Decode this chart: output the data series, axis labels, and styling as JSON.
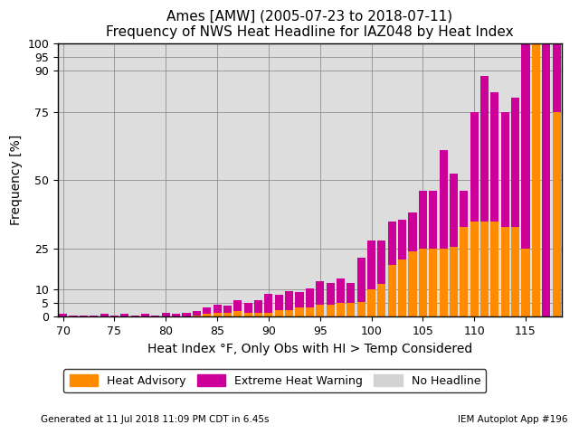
{
  "title1": "Ames [AMW] (2005-07-23 to 2018-07-11)",
  "title2": "Frequency of NWS Heat Headline for IAZ048 by Heat Index",
  "xlabel": "Heat Index °F, Only Obs with HI > Temp Considered",
  "ylabel": "Frequency [%]",
  "footer_left": "Generated at 11 Jul 2018 11:09 PM CDT in 6.45s",
  "footer_right": "IEM Autoplot App #196",
  "bg_color": "#dddddd",
  "color_advisory": "#FF8C00",
  "color_warning": "#CC0099",
  "color_no_headline": "#d3d3d3",
  "yticks": [
    0,
    5,
    10,
    25,
    50,
    75,
    90,
    95,
    100
  ],
  "xticks": [
    70,
    75,
    80,
    85,
    90,
    95,
    100,
    105,
    110,
    115
  ],
  "advisory": [
    0,
    0,
    0,
    0,
    0,
    0,
    0,
    0,
    0,
    0,
    0,
    0,
    0,
    0.5,
    1.0,
    1.5,
    1.5,
    2.0,
    1.5,
    1.5,
    1.5,
    2.5,
    2.5,
    3.5,
    3.5,
    4.5,
    4.5,
    5.0,
    5.0,
    5.5,
    10.0,
    12.0,
    19.0,
    21.0,
    24.0,
    25.0,
    25.0,
    25.0,
    25.5,
    33.0,
    35.0,
    35.0,
    35.0,
    33.0,
    33.0,
    25.0,
    100.0,
    0.0,
    75.0
  ],
  "warning": [
    1.0,
    0.5,
    0.5,
    0.5,
    1.0,
    0.5,
    1.0,
    0.5,
    1.0,
    0.5,
    1.5,
    1.0,
    1.5,
    1.5,
    2.5,
    3.0,
    2.5,
    4.0,
    3.5,
    4.5,
    7.0,
    5.5,
    7.0,
    5.5,
    7.0,
    8.5,
    8.0,
    9.0,
    7.5,
    16.0,
    18.0,
    16.0,
    16.0,
    14.5,
    14.0,
    21.0,
    21.0,
    36.0,
    27.0,
    13.0,
    40.0,
    53.0,
    47.0,
    42.0,
    47.0,
    75.0,
    0.0,
    100.0,
    25.0
  ]
}
